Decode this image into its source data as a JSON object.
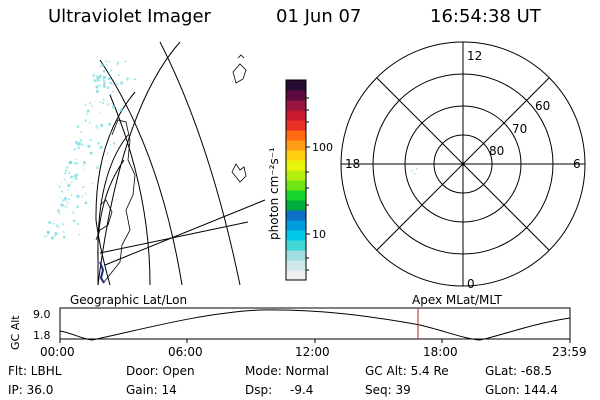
{
  "header": {
    "instrument": "Ultraviolet Imager",
    "date": "01 Jun 07",
    "time": "16:54:38 UT"
  },
  "colorbar": {
    "unit_label": "photon cm⁻²s⁻¹",
    "ticks": [
      "100",
      "10"
    ],
    "colors": [
      "#f0f0f0",
      "#cfe8ea",
      "#9fdde0",
      "#40d7d6",
      "#00c8e6",
      "#009bdc",
      "#0d6fc8",
      "#00ad3a",
      "#19d62d",
      "#6fe417",
      "#b5ef0f",
      "#e8f30c",
      "#ffcf10",
      "#ff9e14",
      "#ff6a12",
      "#ea3026",
      "#c81a2e",
      "#961640",
      "#5a0a3e",
      "#240c35"
    ]
  },
  "polar_plot": {
    "mlt_labels": {
      "top": "12",
      "left": "18",
      "right": "6",
      "bottom": "0"
    },
    "lat_labels": [
      "60",
      "70",
      "80"
    ]
  },
  "geo_panel": {
    "label": "Geographic Lat/Lon"
  },
  "apex_panel": {
    "label": "Apex MLat/MLT"
  },
  "altitude_plot": {
    "axis_label": "GC Alt",
    "y_ticks": [
      "9.0",
      "1.8"
    ],
    "x_ticks": [
      "00:00",
      "06:00",
      "12:00",
      "18:00",
      "23:59"
    ],
    "marker_color": "#b22222"
  },
  "status": {
    "flt": "Flt: LBHL",
    "ip": "IP: 36.0",
    "door": "Door: Open",
    "gain": "Gain: 14",
    "mode": "Mode: Normal",
    "dsp": "Dsp:",
    "dsp_value": "-9.4",
    "gc_alt": "GC Alt: 5.4 Re",
    "seq": "Seq: 39",
    "glat": "GLat: -68.5",
    "glon": "GLon: 144.4"
  }
}
